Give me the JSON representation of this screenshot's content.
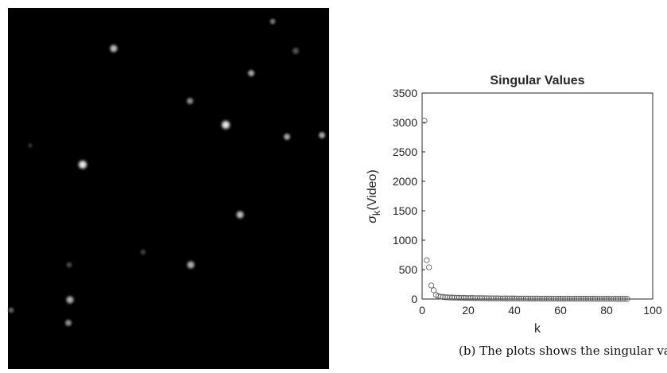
{
  "chart_data": {
    "type": "scatter",
    "title": "Singular Values",
    "xlabel": "k",
    "ylabel": {
      "symbol": "σ",
      "subscript": "k",
      "text": "(Video)"
    },
    "caption": "(b) The plots shows the singular valu",
    "xlim": [
      0,
      100
    ],
    "xticks": [
      0,
      20,
      40,
      60,
      80,
      100
    ],
    "ylim": [
      0,
      3500
    ],
    "yticks": [
      0,
      500,
      1000,
      1500,
      2000,
      2500,
      3000,
      3500
    ],
    "color": "#555555",
    "box": true,
    "x": [
      1,
      2,
      3,
      4,
      5,
      6,
      7,
      8,
      9,
      10,
      11,
      12,
      13,
      14,
      15,
      16,
      17,
      18,
      19,
      20,
      21,
      22,
      23,
      24,
      25,
      26,
      27,
      28,
      29,
      30,
      31,
      32,
      33,
      34,
      35,
      36,
      37,
      38,
      39,
      40,
      41,
      42,
      43,
      44,
      45,
      46,
      47,
      48,
      49,
      50,
      51,
      52,
      53,
      54,
      55,
      56,
      57,
      58,
      59,
      60,
      61,
      62,
      63,
      64,
      65,
      66,
      67,
      68,
      69,
      70,
      71,
      72,
      73,
      74,
      75,
      76,
      77,
      78,
      79,
      80,
      81,
      82,
      83,
      84,
      85,
      86,
      87,
      88,
      89
    ],
    "values": [
      3030,
      660,
      540,
      230,
      150,
      70,
      50,
      40,
      35,
      30,
      28,
      26,
      25,
      24,
      23,
      22,
      21,
      20,
      19,
      18,
      17,
      17,
      16,
      16,
      15,
      15,
      14,
      14,
      13,
      13,
      12,
      12,
      12,
      11,
      11,
      11,
      10,
      10,
      10,
      10,
      9,
      9,
      9,
      9,
      9,
      8,
      8,
      8,
      8,
      8,
      7,
      7,
      7,
      7,
      7,
      7,
      7,
      6,
      6,
      6,
      6,
      6,
      6,
      6,
      6,
      5,
      5,
      5,
      5,
      5,
      5,
      5,
      5,
      5,
      5,
      4,
      4,
      4,
      4,
      4,
      4,
      4,
      4,
      3,
      3,
      3,
      3,
      3,
      3
    ]
  }
}
